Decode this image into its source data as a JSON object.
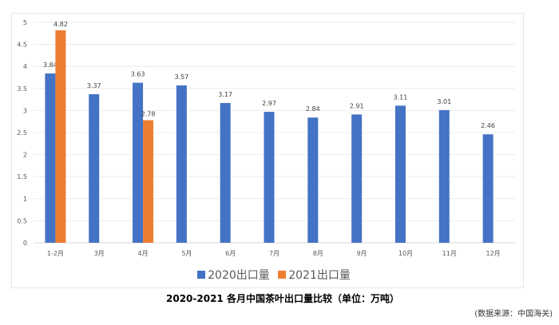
{
  "chart_data": {
    "type": "bar",
    "title": "2020-2021 各月中国茶叶出口量比较（单位：万吨）",
    "source": "(数据来源：中国海关)",
    "categories": [
      "1-2月",
      "3月",
      "4月",
      "5月",
      "6月",
      "7月",
      "8月",
      "9月",
      "10月",
      "11月",
      "12月"
    ],
    "series": [
      {
        "name": "2020出口量",
        "color": "#4472C4",
        "values": [
          3.84,
          3.37,
          3.63,
          3.57,
          3.17,
          2.97,
          2.84,
          2.91,
          3.11,
          3.01,
          2.46
        ]
      },
      {
        "name": "2021出口量",
        "color": "#ED7D31",
        "values": [
          4.82,
          null,
          2.78,
          null,
          null,
          null,
          null,
          null,
          null,
          null,
          null
        ]
      }
    ],
    "ylim": [
      0,
      5
    ],
    "yticks": [
      0,
      0.5,
      1,
      1.5,
      2,
      2.5,
      3,
      3.5,
      4,
      4.5,
      5
    ],
    "grid": true,
    "legend": "bottom"
  }
}
